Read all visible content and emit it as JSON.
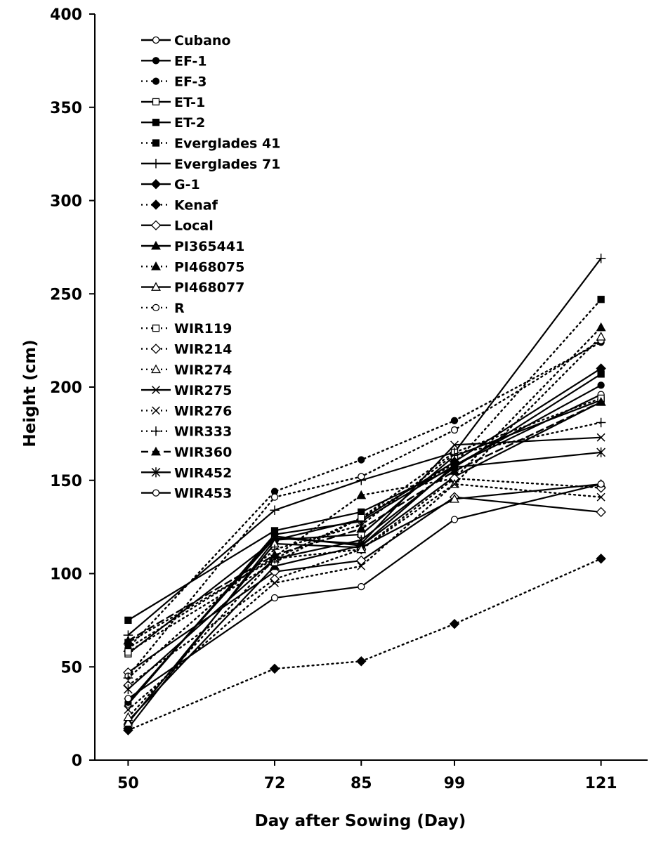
{
  "chart_data": {
    "type": "line",
    "title": "",
    "xlabel": "Day after Sowing (Day)",
    "ylabel": "Height (cm)",
    "x": [
      50,
      72,
      85,
      99,
      121
    ],
    "xticks": [
      "50",
      "72",
      "85",
      "99",
      "121"
    ],
    "ylim": [
      0,
      400
    ],
    "yticks": [
      "0",
      "50",
      "100",
      "150",
      "200",
      "250",
      "300",
      "350",
      "400"
    ],
    "grid": false,
    "legend_position": "top-left",
    "series": [
      {
        "name": "Cubano",
        "values": [
          30,
          121,
          128,
          158,
          196
        ],
        "line": "solid",
        "marker": "circle-open"
      },
      {
        "name": "EF-1",
        "values": [
          31,
          120,
          115,
          158,
          201
        ],
        "line": "solid",
        "marker": "circle-filled"
      },
      {
        "name": "EF-3",
        "values": [
          60,
          144,
          161,
          182,
          224
        ],
        "line": "dotted",
        "marker": "circle-filled"
      },
      {
        "name": "ET-1",
        "values": [
          57,
          118,
          121,
          163,
          193
        ],
        "line": "solid",
        "marker": "square-open"
      },
      {
        "name": "ET-2",
        "values": [
          75,
          123,
          133,
          157,
          207
        ],
        "line": "solid",
        "marker": "square-filled"
      },
      {
        "name": "Everglades 41",
        "values": [
          63,
          108,
          130,
          159,
          247
        ],
        "line": "dotted",
        "marker": "square-filled"
      },
      {
        "name": "Everglades 71",
        "values": [
          67,
          134,
          150,
          165,
          269
        ],
        "line": "solid",
        "marker": "plus"
      },
      {
        "name": "G-1",
        "values": [
          17,
          118,
          129,
          160,
          210
        ],
        "line": "solid",
        "marker": "diamond-filled"
      },
      {
        "name": "Kenaf",
        "values": [
          16,
          49,
          53,
          73,
          108
        ],
        "line": "dotted",
        "marker": "diamond-filled"
      },
      {
        "name": "Local",
        "values": [
          47,
          101,
          107,
          141,
          133
        ],
        "line": "solid",
        "marker": "diamond-open"
      },
      {
        "name": "PI365441",
        "values": [
          21,
          104,
          115,
          152,
          192
        ],
        "line": "solid",
        "marker": "triangle-filled"
      },
      {
        "name": "PI468075",
        "values": [
          60,
          109,
          142,
          151,
          232
        ],
        "line": "dotted",
        "marker": "triangle-filled"
      },
      {
        "name": "PI468077",
        "values": [
          20,
          116,
          114,
          140,
          148
        ],
        "line": "solid",
        "marker": "triangle-open"
      },
      {
        "name": "R",
        "values": [
          45,
          141,
          152,
          177,
          225
        ],
        "line": "dotted",
        "marker": "circle-open"
      },
      {
        "name": "WIR119",
        "values": [
          58,
          106,
          130,
          165,
          194
        ],
        "line": "dotted",
        "marker": "square-open"
      },
      {
        "name": "WIR214",
        "values": [
          40,
          97,
          113,
          151,
          146
        ],
        "line": "dotted",
        "marker": "diamond-open"
      },
      {
        "name": "WIR274",
        "values": [
          23,
          108,
          113,
          148,
          227
        ],
        "line": "dotted",
        "marker": "triangle-open"
      },
      {
        "name": "WIR275",
        "values": [
          31,
          119,
          116,
          169,
          173
        ],
        "line": "solid",
        "marker": "x"
      },
      {
        "name": "WIR276",
        "values": [
          27,
          95,
          104,
          148,
          141
        ],
        "line": "dotted",
        "marker": "x"
      },
      {
        "name": "WIR333",
        "values": [
          44,
          113,
          126,
          164,
          181
        ],
        "line": "dotted",
        "marker": "plus"
      },
      {
        "name": "WIR360",
        "values": [
          64,
          110,
          124,
          155,
          192
        ],
        "line": "dashed",
        "marker": "triangle-filled"
      },
      {
        "name": "WIR452",
        "values": [
          38,
          108,
          118,
          157,
          165
        ],
        "line": "solid",
        "marker": "asterisk"
      },
      {
        "name": "WIR453",
        "values": [
          33,
          87,
          93,
          129,
          148
        ],
        "line": "solid",
        "marker": "circle-open"
      }
    ]
  }
}
